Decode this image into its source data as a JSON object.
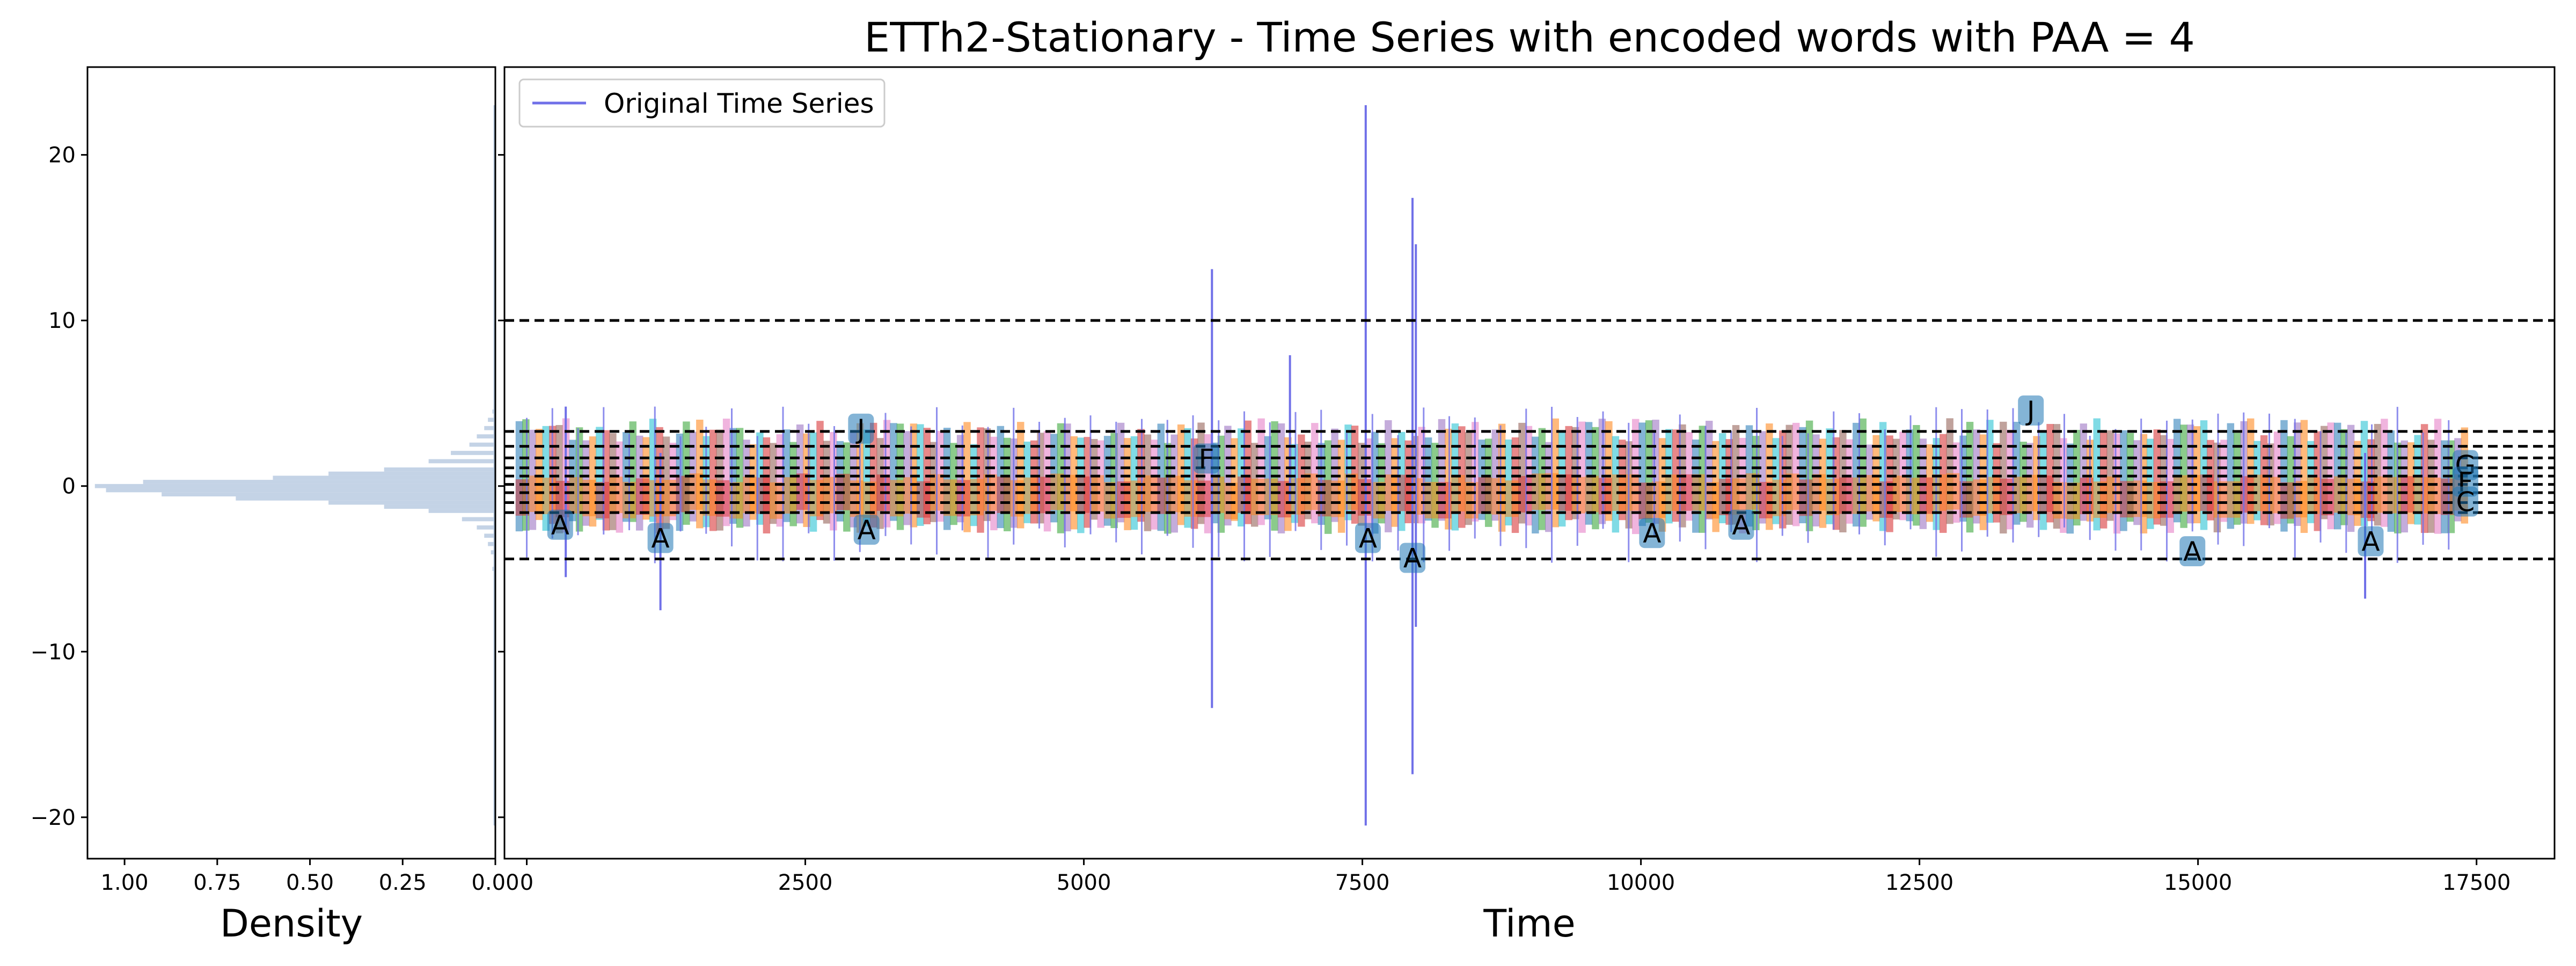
{
  "chart_data": [
    {
      "type": "histogram",
      "orientation": "horizontal",
      "xlabel": "Density",
      "xlim": [
        1.1,
        0.0
      ],
      "xticks": [
        "1.00",
        "0.75",
        "0.50",
        "0.25",
        "0.00"
      ],
      "ylim": [
        -22.5,
        25.3
      ],
      "yticks": [
        "20",
        "10",
        "0",
        "−10",
        "−20"
      ],
      "bar_color": "#b0c4de",
      "bins": [
        {
          "y": -20.5,
          "density": 0.002
        },
        {
          "y": -7.5,
          "density": 0.003
        },
        {
          "y": -5.0,
          "density": 0.008
        },
        {
          "y": -4.0,
          "density": 0.012
        },
        {
          "y": -3.5,
          "density": 0.02
        },
        {
          "y": -3.0,
          "density": 0.03
        },
        {
          "y": -2.5,
          "density": 0.05
        },
        {
          "y": -2.0,
          "density": 0.09
        },
        {
          "y": -1.5,
          "density": 0.18
        },
        {
          "y": -1.25,
          "density": 0.3
        },
        {
          "y": -1.0,
          "density": 0.45
        },
        {
          "y": -0.75,
          "density": 0.7
        },
        {
          "y": -0.5,
          "density": 0.9
        },
        {
          "y": -0.25,
          "density": 1.05
        },
        {
          "y": 0.0,
          "density": 1.08
        },
        {
          "y": 0.25,
          "density": 0.95
        },
        {
          "y": 0.5,
          "density": 0.6
        },
        {
          "y": 0.75,
          "density": 0.45
        },
        {
          "y": 1.0,
          "density": 0.3
        },
        {
          "y": 1.5,
          "density": 0.18
        },
        {
          "y": 2.0,
          "density": 0.12
        },
        {
          "y": 2.5,
          "density": 0.07
        },
        {
          "y": 3.0,
          "density": 0.05
        },
        {
          "y": 3.5,
          "density": 0.03
        },
        {
          "y": 4.0,
          "density": 0.02
        },
        {
          "y": 4.5,
          "density": 0.008
        },
        {
          "y": 10.0,
          "density": 0.002
        },
        {
          "y": 15.0,
          "density": 0.002
        },
        {
          "y": 23.0,
          "density": 0.002
        }
      ]
    },
    {
      "type": "line",
      "title": "ETTh2-Stationary - Time Series with encoded words with PAA = 4",
      "xlabel": "Time",
      "xlim": [
        -200,
        18200
      ],
      "ylim": [
        -22.5,
        25.3
      ],
      "xticks": [
        "0",
        "2500",
        "5000",
        "7500",
        "10000",
        "12500",
        "15000",
        "17500"
      ],
      "legend": {
        "label": "Original Time Series",
        "position": "upper-left"
      },
      "series_color": "#7070e8",
      "breakpoints": [
        10.0,
        3.3,
        2.4,
        1.7,
        1.1,
        0.6,
        0.1,
        -0.4,
        -1.0,
        -1.6,
        -4.4
      ],
      "band": {
        "x_start": -100,
        "x_end": 17400,
        "low": -2.0,
        "high": 2.5
      },
      "band_palette": [
        "#1f77b4",
        "#2ca02c",
        "#9467bd",
        "#ff7f0e",
        "#17becf",
        "#d62728",
        "#8c564b",
        "#e377c2"
      ],
      "spikes": [
        {
          "x": 6150,
          "low": -13.4,
          "high": 13.1
        },
        {
          "x": 6850,
          "low": -1.0,
          "high": 7.9
        },
        {
          "x": 7530,
          "low": -20.5,
          "high": 23.0
        },
        {
          "x": 7950,
          "low": -17.4,
          "high": 17.4
        },
        {
          "x": 7980,
          "low": -8.5,
          "high": 14.6
        },
        {
          "x": 1200,
          "low": -7.5,
          "high": 2.0
        },
        {
          "x": 350,
          "low": -5.5,
          "high": 4.8
        },
        {
          "x": 16500,
          "low": -6.8,
          "high": 2.0
        }
      ],
      "letters": [
        {
          "x": 300,
          "y": -2.4,
          "text": "A"
        },
        {
          "x": 1200,
          "y": -3.2,
          "text": "A"
        },
        {
          "x": 3050,
          "y": -2.7,
          "text": "A"
        },
        {
          "x": 3000,
          "y": 3.4,
          "text": "J"
        },
        {
          "x": 6100,
          "y": 1.6,
          "text": "F"
        },
        {
          "x": 7550,
          "y": -3.2,
          "text": "A"
        },
        {
          "x": 7950,
          "y": -4.4,
          "text": "A"
        },
        {
          "x": 10100,
          "y": -2.9,
          "text": "A"
        },
        {
          "x": 10900,
          "y": -2.4,
          "text": "A"
        },
        {
          "x": 14950,
          "y": -4.0,
          "text": "A"
        },
        {
          "x": 16550,
          "y": -3.4,
          "text": "A"
        },
        {
          "x": 13500,
          "y": 4.5,
          "text": "J"
        },
        {
          "x": 17400,
          "y": 1.2,
          "text": "G"
        },
        {
          "x": 17400,
          "y": 0.2,
          "text": "F"
        },
        {
          "x": 17400,
          "y": -1.0,
          "text": "C"
        }
      ]
    }
  ]
}
